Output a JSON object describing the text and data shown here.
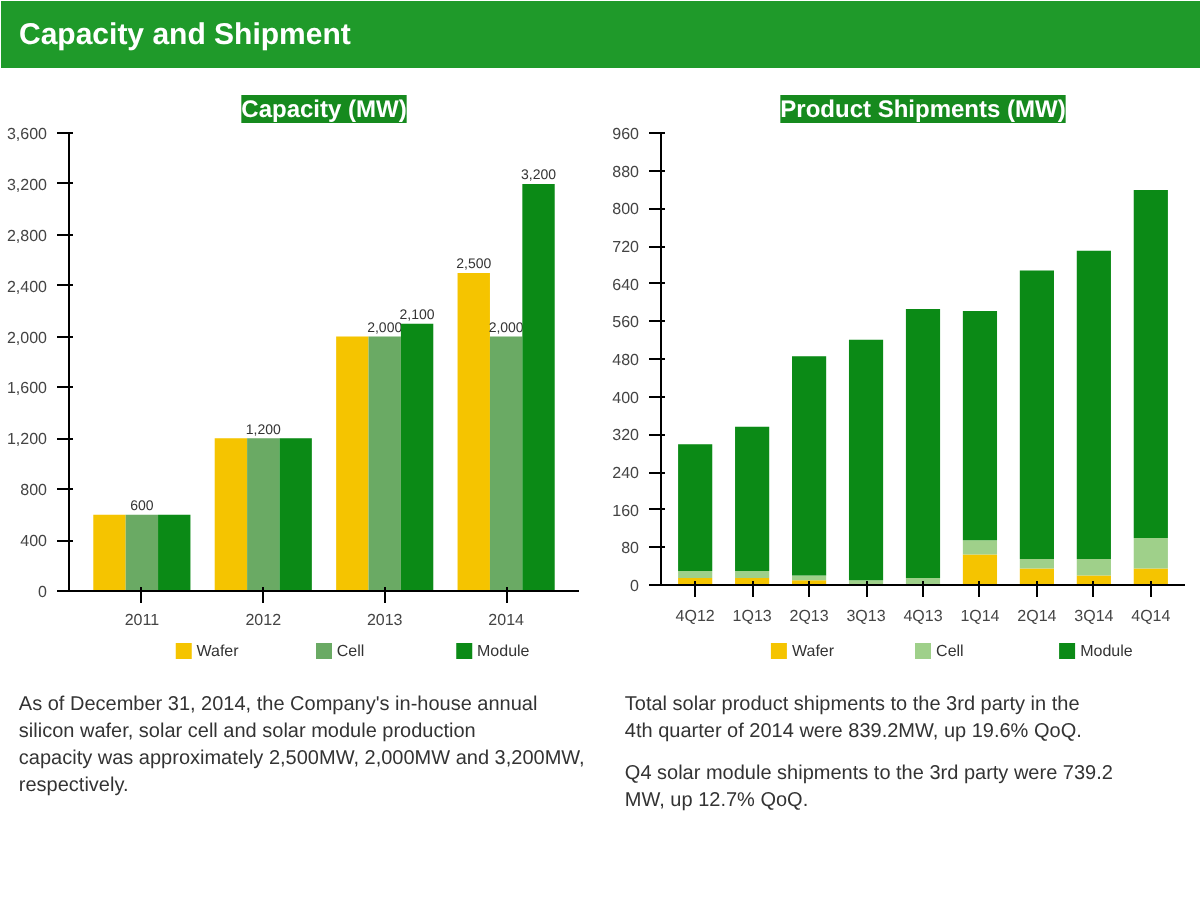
{
  "chart_data": [
    {
      "type": "other",
      "title": "Capacity and Shipment"
    },
    {
      "type": "bar",
      "title": "Capacity (MW)",
      "categories": [
        "2011",
        "2012",
        "2013",
        "2014"
      ],
      "series": [
        {
          "name": "Wafer",
          "color": "#f5c400",
          "values": [
            600,
            1200,
            2000,
            2500
          ],
          "value_labels": [
            null,
            null,
            null,
            "2,500"
          ]
        },
        {
          "name": "Cell",
          "color": "#6aaa64",
          "values": [
            600,
            1200,
            2000,
            2000
          ],
          "value_labels": [
            "600",
            "1,200",
            "2,000",
            "2,000"
          ]
        },
        {
          "name": "Module",
          "color": "#0b8a16",
          "values": [
            600,
            1200,
            2100,
            3200
          ],
          "value_labels": [
            null,
            null,
            "2,100",
            "3,200"
          ]
        }
      ],
      "ylim": [
        0,
        3600
      ],
      "yticks": [
        0,
        400,
        800,
        {
          "value": 1200,
          "label": "1,200"
        },
        {
          "value": 1600,
          "label": "1,600"
        },
        {
          "value": 2000,
          "label": "2,000"
        },
        {
          "value": 2400,
          "label": "2,400"
        },
        {
          "value": 2800,
          "label": "2,800"
        },
        {
          "value": 3200,
          "label": "3,200"
        },
        {
          "value": 3600,
          "label": "3,600"
        }
      ],
      "grid": false,
      "legend": "bottom",
      "annotations": [
        "As of December 31, 2014, the Company's in-house annual silicon wafer, solar cell and solar module production capacity was approximately 2,500MW, 2,000MW and 3,200MW, respectively."
      ]
    },
    {
      "type": "bar",
      "title": "Product Shipments (MW)",
      "stacked": true,
      "categories": [
        "4Q12",
        "1Q13",
        "2Q13",
        "3Q13",
        "4Q13",
        "1Q14",
        "2Q14",
        "3Q14",
        "4Q14"
      ],
      "series": [
        {
          "name": "Wafer",
          "color": "#f5c400",
          "values": [
            15,
            15,
            10,
            null,
            null,
            65,
            35,
            20,
            35
          ]
        },
        {
          "name": "Cell",
          "color": "#9fd08a",
          "values": [
            15,
            15,
            10,
            10,
            15,
            30,
            20,
            35,
            65
          ]
        },
        {
          "name": "Module",
          "color": "#0b8a16",
          "values": [
            269,
            306,
            466,
            511,
            571,
            487,
            613,
            655,
            739.2
          ]
        }
      ],
      "ylim": [
        0,
        960
      ],
      "yticks": [
        0,
        80,
        160,
        240,
        320,
        400,
        480,
        560,
        640,
        720,
        800,
        880,
        960
      ],
      "grid": false,
      "legend": "bottom",
      "annotations": [
        "Total solar product shipments to the 3rd party in the 4th quarter of 2014 were 839.2MW, up 19.6% QoQ.",
        "Q4 solar module shipments to the 3rd party were 739.2 MW, up 12.7% QoQ."
      ]
    }
  ]
}
